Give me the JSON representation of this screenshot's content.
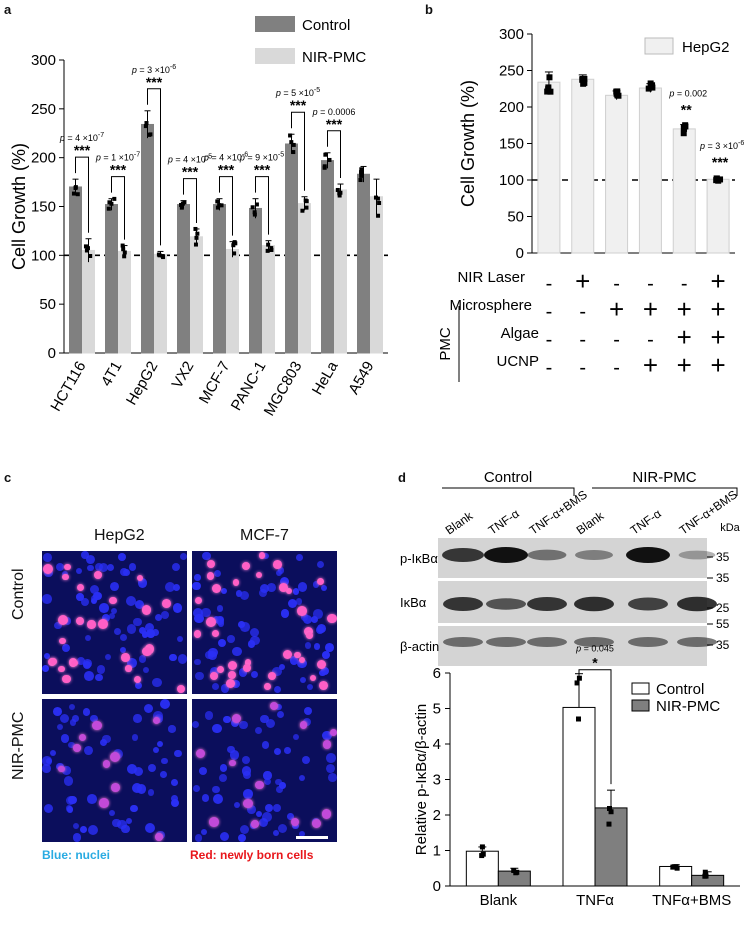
{
  "panels": {
    "a": "a",
    "b": "b",
    "c": "c",
    "d": "d"
  },
  "chart_data": [
    {
      "id": "a",
      "type": "bar",
      "ylabel": "Cell Growth (%)",
      "ylim": [
        0,
        300
      ],
      "yticks": [
        "0",
        "50",
        "100",
        "150",
        "200",
        "250",
        "300"
      ],
      "reference_line": 100,
      "categories": [
        "HCT116",
        "4T1",
        "HepG2",
        "VX2",
        "MCF-7",
        "PANC-1",
        "MGC803",
        "HeLa",
        "A549"
      ],
      "series": [
        {
          "name": "Control",
          "color": "#808080",
          "values": [
            170,
            152,
            234,
            152,
            152,
            148,
            214,
            197,
            183
          ],
          "errors": [
            8,
            6,
            14,
            4,
            6,
            10,
            10,
            8,
            8
          ]
        },
        {
          "name": "NIR-PMC",
          "color": "#d9d9d9",
          "values": [
            105,
            104,
            101,
            119,
            106,
            110,
            153,
            167,
            160
          ],
          "errors": [
            12,
            6,
            3,
            8,
            8,
            5,
            7,
            6,
            18
          ]
        }
      ],
      "annotations": [
        {
          "category": 0,
          "p": "p = 4 ×10-7",
          "stars": "***"
        },
        {
          "category": 1,
          "p": "p = 1 ×10-7",
          "stars": "***"
        },
        {
          "category": 2,
          "p": "p = 3 ×10-6",
          "stars": "***"
        },
        {
          "category": 3,
          "p": "p = 4 ×10-5",
          "stars": "***"
        },
        {
          "category": 4,
          "p": "p = 4 ×10-6",
          "stars": "***"
        },
        {
          "category": 5,
          "p": "p = 9 ×10-5",
          "stars": "***"
        },
        {
          "category": 6,
          "p": "p = 5 ×10-5",
          "stars": "***"
        },
        {
          "category": 7,
          "p": "p = 0.0006",
          "stars": "***"
        }
      ],
      "legend": [
        "Control",
        "NIR-PMC"
      ],
      "legend_position": "top-right"
    },
    {
      "id": "b",
      "type": "bar",
      "ylabel": "Cell Growth (%)",
      "ylim": [
        0,
        300
      ],
      "yticks": [
        "0",
        "50",
        "100",
        "150",
        "200",
        "250",
        "300"
      ],
      "reference_line": 100,
      "series": [
        {
          "name": "HepG2",
          "color": "#f0f0f0",
          "values": [
            234,
            238,
            216,
            226,
            170,
            101
          ],
          "errors": [
            14,
            6,
            6,
            6,
            6,
            3
          ]
        }
      ],
      "annotations": [
        {
          "bar": 4,
          "p": "p = 0.002",
          "stars": "**"
        },
        {
          "bar": 5,
          "p": "p = 3 ×10-6",
          "stars": "***"
        }
      ],
      "conditions": {
        "group_label": "PMC",
        "rows": [
          {
            "label": "NIR Laser",
            "marks": [
              "-",
              "+",
              "-",
              "-",
              "-",
              "+"
            ]
          },
          {
            "label": "Microsphere",
            "marks": [
              "-",
              "-",
              "+",
              "+",
              "+",
              "+"
            ]
          },
          {
            "label": "Algae",
            "marks": [
              "-",
              "-",
              "-",
              "-",
              "+",
              "+"
            ]
          },
          {
            "label": "UCNP",
            "marks": [
              "-",
              "-",
              "-",
              "+",
              "+",
              "+"
            ]
          }
        ]
      },
      "legend": [
        "HepG2"
      ],
      "legend_position": "top-right"
    },
    {
      "id": "d-bar",
      "type": "bar",
      "ylabel": "Relative p-IκBα/β-actin",
      "ylim": [
        0,
        6
      ],
      "yticks": [
        "0",
        "1",
        "2",
        "3",
        "4",
        "5",
        "6"
      ],
      "categories": [
        "Blank",
        "TNFα",
        "TNFα+BMS"
      ],
      "series": [
        {
          "name": "Control",
          "color": "#ffffff",
          "values": [
            0.98,
            5.03,
            0.55
          ],
          "errors": [
            0.12,
            0.95,
            0.05
          ]
        },
        {
          "name": "NIR-PMC",
          "color": "#7f7f7f",
          "values": [
            0.42,
            2.2,
            0.3
          ],
          "errors": [
            0.08,
            0.5,
            0.1
          ]
        }
      ],
      "annotations": [
        {
          "category": 1,
          "p": "p = 0.045",
          "stars": "*"
        }
      ],
      "legend": [
        "Control",
        "NIR-PMC"
      ],
      "legend_position": "top-right"
    }
  ],
  "panel_c": {
    "columns": [
      "HepG2",
      "MCF-7"
    ],
    "rows": [
      "Control",
      "NIR-PMC"
    ],
    "caption_blue": "Blue: nuclei",
    "caption_red": "Red: newly born cells"
  },
  "panel_d_blot": {
    "groups": [
      "Control",
      "NIR-PMC"
    ],
    "lanes": [
      "Blank",
      "TNF-α",
      "TNF-α+BMS",
      "Blank",
      "TNF-α",
      "TNF-α+BMS"
    ],
    "rows": [
      "p-IκBα",
      "IκBα",
      "β-actin"
    ],
    "unit": "kDa",
    "markers": [
      "35",
      "35",
      "25",
      "55",
      "35"
    ],
    "pband_intensity": [
      0.75,
      1.0,
      0.35,
      0.25,
      1.0,
      0.1
    ],
    "iband_intensity": [
      0.8,
      0.55,
      0.8,
      0.85,
      0.7,
      0.85
    ]
  }
}
